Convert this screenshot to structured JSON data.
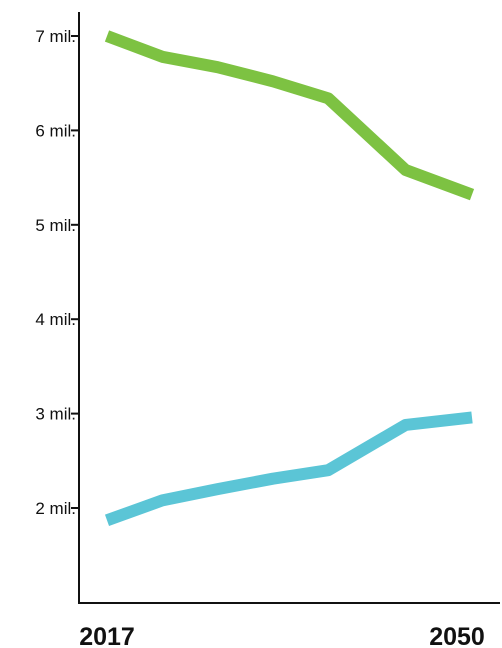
{
  "chart_data": {
    "type": "line",
    "title": "",
    "xlabel": "",
    "ylabel": "",
    "x": [
      2017,
      2022,
      2027,
      2032,
      2037,
      2044,
      2050
    ],
    "series": [
      {
        "color": "#7dc242",
        "values": [
          7000000,
          6780000,
          6670000,
          6520000,
          6340000,
          5580000,
          5320000
        ]
      },
      {
        "color": "#5bc5d6",
        "values": [
          1870000,
          2080000,
          2200000,
          2310000,
          2400000,
          2880000,
          2960000
        ]
      }
    ],
    "xlim": [
      2017,
      2050
    ],
    "ylim": [
      1000000,
      7300000
    ],
    "yticks": [
      {
        "value": 2000000,
        "label": "2 mil."
      },
      {
        "value": 3000000,
        "label": "3 mil."
      },
      {
        "value": 4000000,
        "label": "4 mil."
      },
      {
        "value": 5000000,
        "label": "5 mil."
      },
      {
        "value": 6000000,
        "label": "6 mil."
      },
      {
        "value": 7000000,
        "label": "7 mil."
      }
    ],
    "xticks": [
      {
        "value": 2017,
        "label": "2017"
      },
      {
        "value": 2050,
        "label": "2050"
      }
    ],
    "grid": false,
    "legend": "none"
  }
}
